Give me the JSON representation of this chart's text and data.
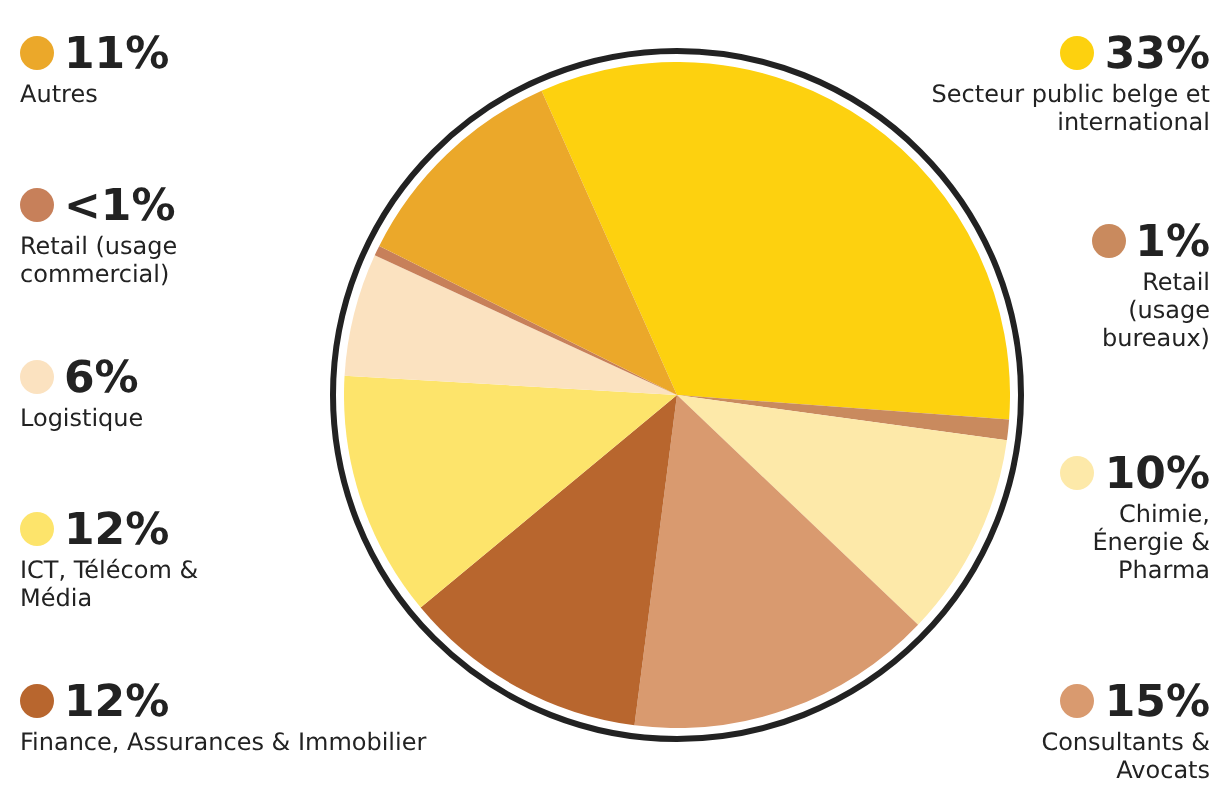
{
  "chart_data": {
    "type": "pie",
    "categories": [
      "Secteur public belge et international",
      "Retail (usage bureaux)",
      "Chimie, Énergie & Pharma",
      "Consultants & Avocats",
      "Finance, Assurances & Immobilier",
      "ICT, Télécom & Média",
      "Logistique",
      "Retail (usage commercial)",
      "Autres"
    ],
    "values": [
      33,
      1,
      10,
      15,
      12,
      12,
      6,
      0.5,
      11
    ],
    "value_labels": [
      "33%",
      "1%",
      "10%",
      "15%",
      "12%",
      "12%",
      "6%",
      "<1%",
      "11%"
    ],
    "colors": [
      "#fdd10f",
      "#c98a5e",
      "#fde9a9",
      "#d99a6f",
      "#b8662e",
      "#fde46b",
      "#fbe2c0",
      "#c7805a",
      "#eba82a"
    ],
    "legend": "left"
  }
}
